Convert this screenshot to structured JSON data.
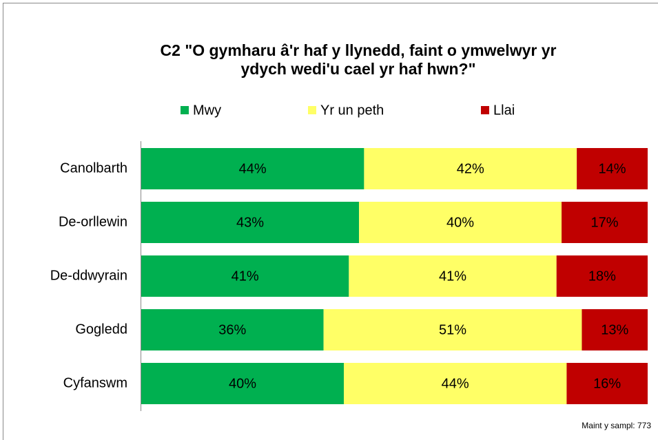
{
  "chart_data": {
    "type": "stacked_bar_horizontal",
    "title": "C2 \"O gymharu â'r haf y llynedd, faint o ymwelwyr yr",
    "subtitle": "ydych wedi'u cael yr haf hwn?\"",
    "categories": [
      "Canolbarth",
      "De-orllewin",
      "De-ddwyrain",
      "Gogledd",
      "Cyfanswm"
    ],
    "series": [
      {
        "name": "Mwy",
        "color": "#00b050",
        "values": [
          44,
          43,
          41,
          36,
          40
        ],
        "value_labels": [
          "44%",
          "43%",
          "41%",
          "36%",
          "40%"
        ]
      },
      {
        "name": "Yr un peth",
        "color": "#ffff66",
        "values": [
          42,
          40,
          41,
          51,
          44
        ],
        "value_labels": [
          "42%",
          "40%",
          "41%",
          "51%",
          "44%"
        ]
      },
      {
        "name": "Llai",
        "color": "#c00000",
        "values": [
          14,
          17,
          18,
          13,
          16
        ],
        "value_labels": [
          "14%",
          "17%",
          "18%",
          "13%",
          "16%"
        ]
      }
    ],
    "xlim": [
      0,
      100
    ],
    "legend": "top",
    "annotation": "Maint y sampl: 773"
  }
}
